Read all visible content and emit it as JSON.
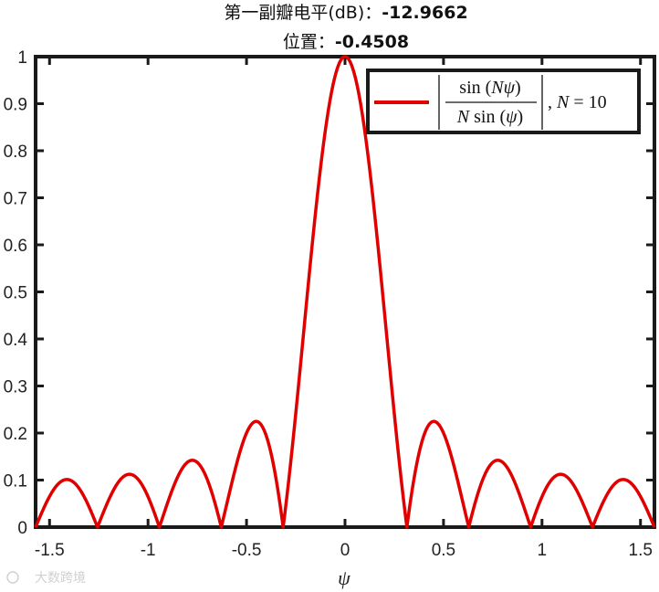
{
  "title": {
    "line1_label": "第一副瓣电平(dB)：",
    "line1_value": "-12.9662",
    "line2_label": "位置：",
    "line2_value": "-0.4508"
  },
  "watermark": "大数跨境",
  "colors": {
    "curve": "#e00000",
    "axes": "#1a1a1a"
  },
  "chart_data": {
    "type": "line",
    "function": "|sin(N*psi) / (N*sin(psi))|",
    "N": 10,
    "xlabel": "ψ",
    "ylabel": "",
    "xlim": [
      -1.5708,
      1.5708
    ],
    "ylim": [
      0,
      1
    ],
    "xticks": [
      -1.5,
      -1,
      -0.5,
      0,
      0.5,
      1,
      1.5
    ],
    "xtick_labels": [
      "-1.5",
      "-1",
      "-0.5",
      "0",
      "0.5",
      "1",
      "1.5"
    ],
    "yticks": [
      0,
      0.1,
      0.2,
      0.3,
      0.4,
      0.5,
      0.6,
      0.7,
      0.8,
      0.9,
      1
    ],
    "ytick_labels": [
      "0",
      "0.1",
      "0.2",
      "0.3",
      "0.4",
      "0.5",
      "0.6",
      "0.7",
      "0.8",
      "0.9",
      "1"
    ],
    "grid": false,
    "legend": {
      "position": "top-right",
      "N_text": "N = 10"
    },
    "series": [
      {
        "x": [
          -1.5708,
          -1.5,
          -1.4,
          -1.2566,
          -1.1,
          -0.9425,
          -0.78,
          -0.6283,
          -0.4508,
          -0.3142,
          -0.2,
          -0.1,
          0,
          0.1,
          0.2,
          0.3142,
          0.4508,
          0.6283,
          0.78,
          0.9425,
          1.1,
          1.2566,
          1.4,
          1.5,
          1.5708
        ],
        "y": [
          0.0,
          0.07,
          0.1,
          0.0,
          0.11,
          0.0,
          0.14,
          0.0,
          0.224,
          0.0,
          0.47,
          0.86,
          1.0,
          0.86,
          0.47,
          0.0,
          0.224,
          0.0,
          0.14,
          0.0,
          0.11,
          0.0,
          0.1,
          0.07,
          0.0
        ]
      }
    ]
  }
}
